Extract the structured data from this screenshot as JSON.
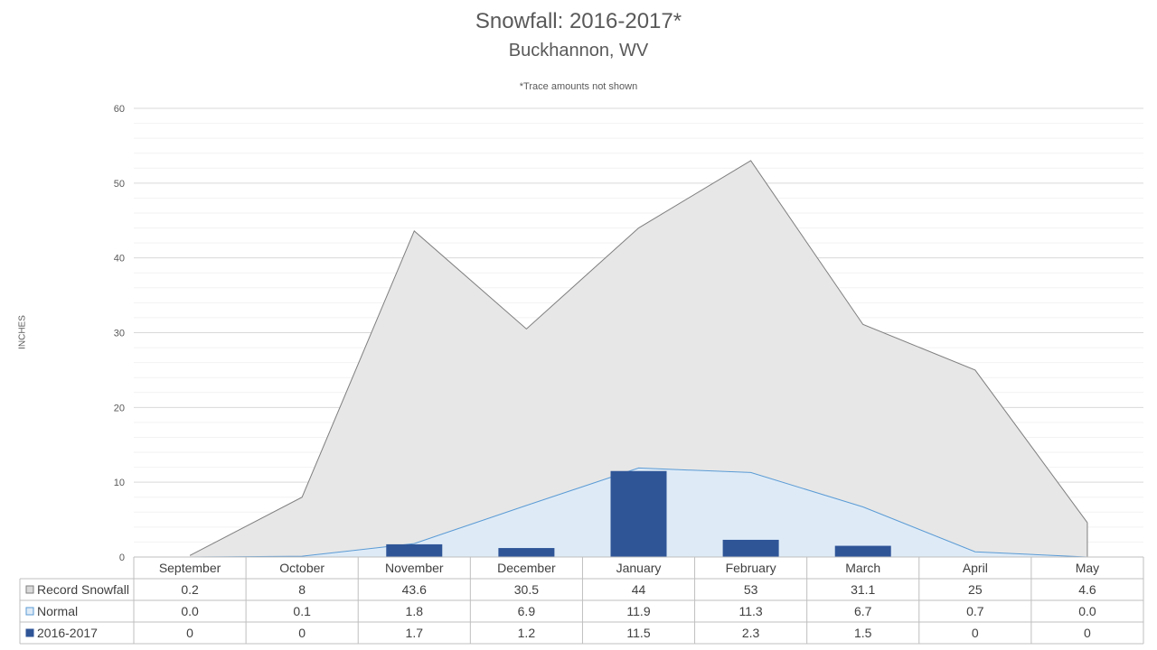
{
  "chart_data": {
    "type": "area",
    "title": "Snowfall: 2016-2017*",
    "subtitle": "Buckhannon, WV",
    "note": "*Trace amounts not shown",
    "ylabel": "INCHES",
    "xlabel": "",
    "ylim": [
      0,
      60
    ],
    "yticks": [
      0,
      10,
      20,
      30,
      40,
      50,
      60
    ],
    "grid": true,
    "legend": "data-table",
    "categories": [
      "September",
      "October",
      "November",
      "December",
      "January",
      "February",
      "March",
      "April",
      "May"
    ],
    "series": [
      {
        "name": "Record Snowfall",
        "type": "area",
        "color": "#e7e7e7",
        "line_color": "#7f7f7f",
        "values": [
          0.2,
          8,
          43.6,
          30.5,
          44,
          53,
          31.1,
          25,
          4.6
        ],
        "labels": [
          "0.2",
          "8",
          "43.6",
          "30.5",
          "44",
          "53",
          "31.1",
          "25",
          "4.6"
        ]
      },
      {
        "name": "Normal",
        "type": "area",
        "color": "#deebf7",
        "line_color": "#5b9bd5",
        "values": [
          0.0,
          0.1,
          1.8,
          6.9,
          11.9,
          11.3,
          6.7,
          0.7,
          0.0
        ],
        "labels": [
          "0.0",
          "0.1",
          "1.8",
          "6.9",
          "11.9",
          "11.3",
          "6.7",
          "0.7",
          "0.0"
        ]
      },
      {
        "name": "2016-2017",
        "type": "bar",
        "color": "#2f5597",
        "values": [
          0,
          0,
          1.7,
          1.2,
          11.5,
          2.3,
          1.5,
          0,
          0
        ],
        "labels": [
          "0",
          "0",
          "1.7",
          "1.2",
          "11.5",
          "2.3",
          "1.5",
          "0",
          "0"
        ]
      }
    ]
  }
}
